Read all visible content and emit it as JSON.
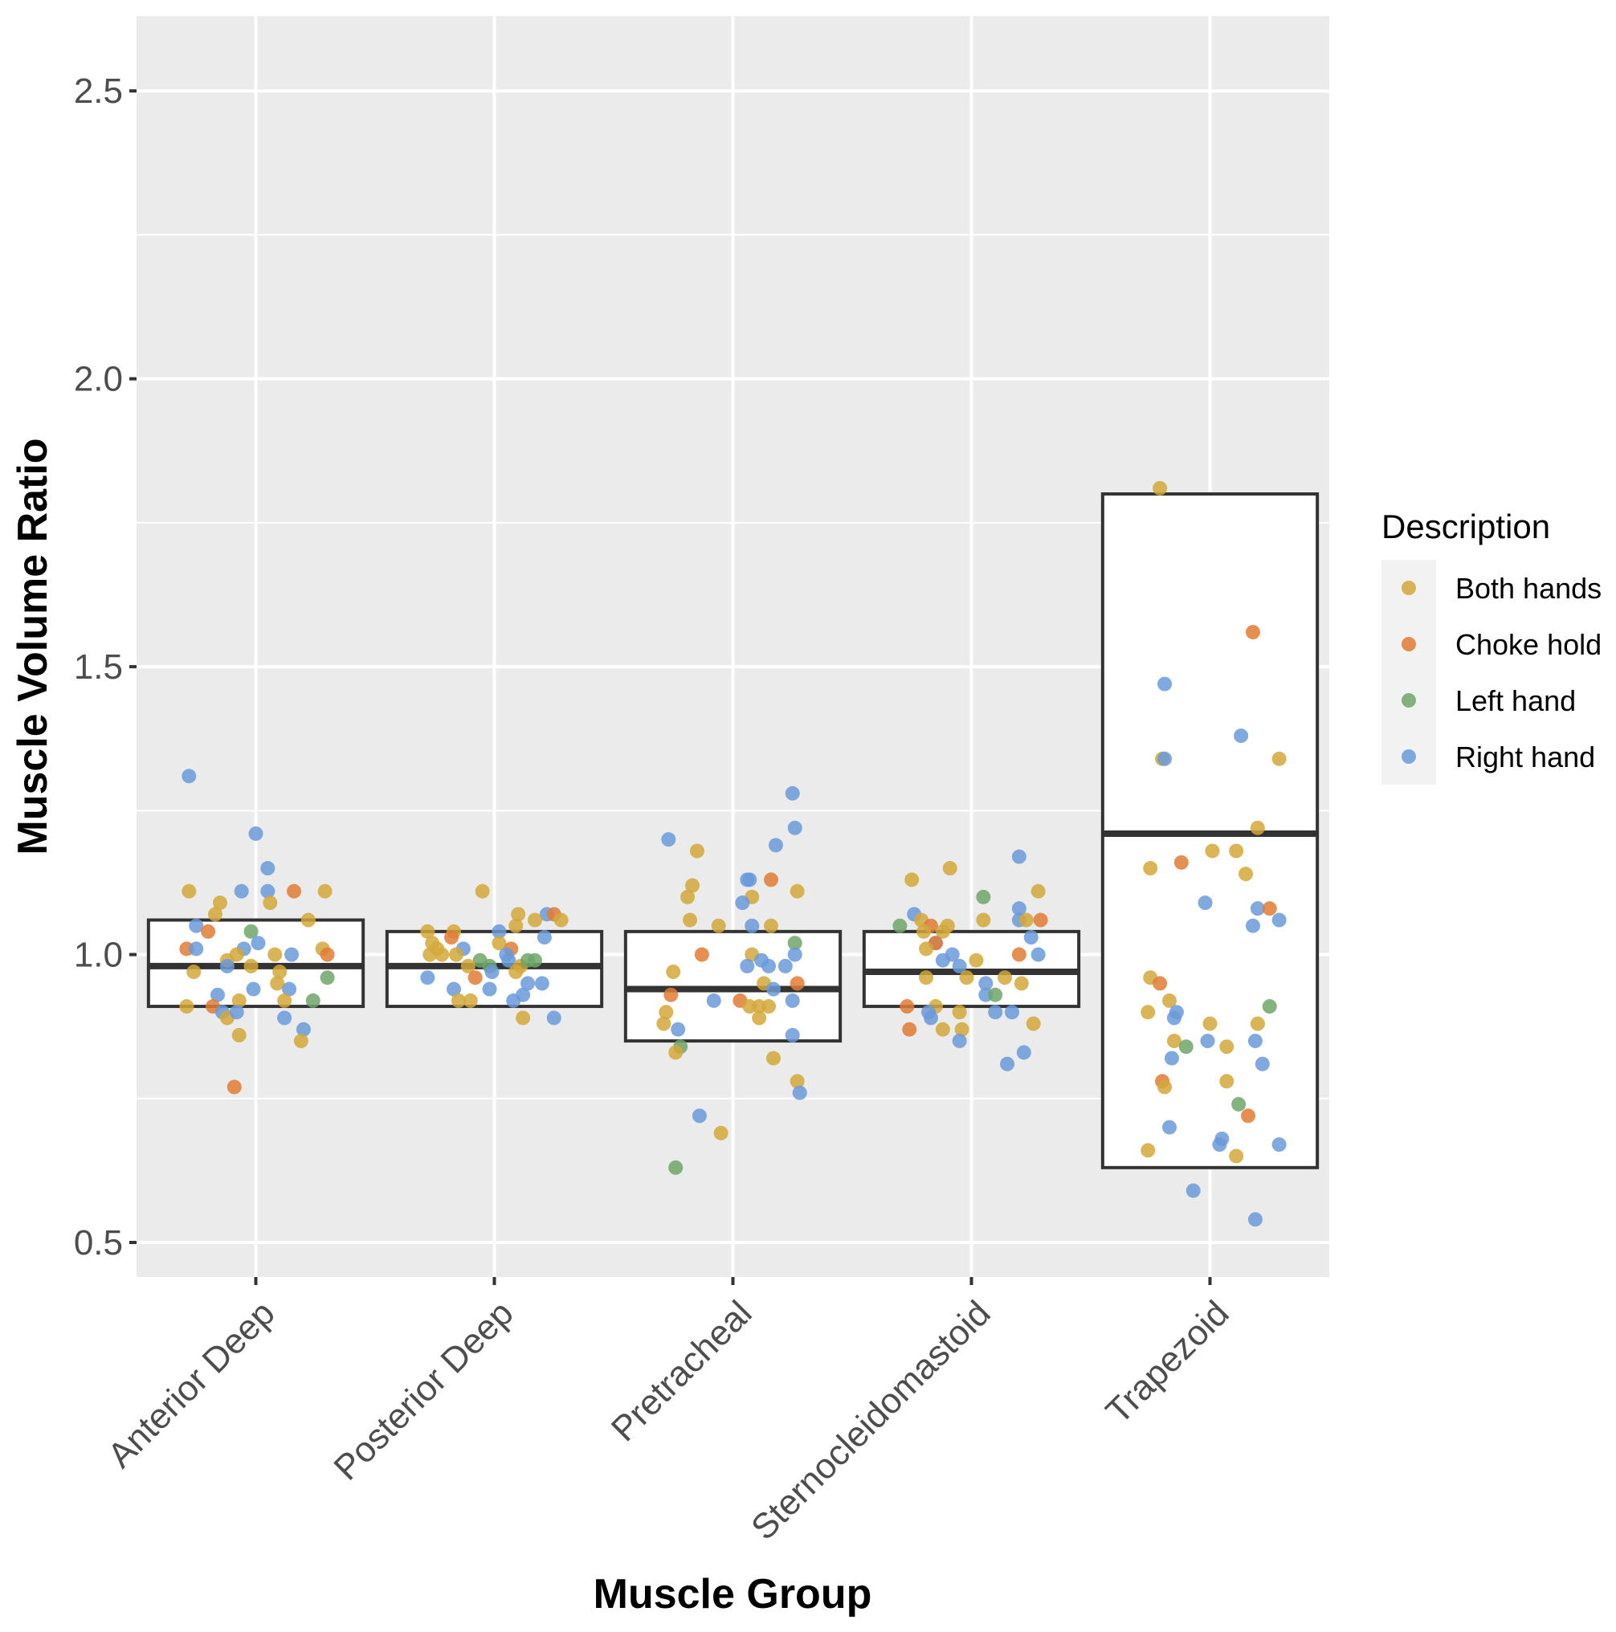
{
  "chart_data": {
    "type": "box-with-jitter",
    "title": "",
    "xlabel": "Muscle Group",
    "ylabel": "Muscle Volume Ratio",
    "ylim": [
      0.44,
      2.63
    ],
    "yticks": [
      "0.5",
      "1.0",
      "1.5",
      "2.0",
      "2.5"
    ],
    "ytick_values": [
      0.5,
      1.0,
      1.5,
      2.0,
      2.5
    ],
    "grid": true,
    "legend": {
      "title": "Description",
      "placement": "right",
      "entries": [
        {
          "label": "Both hands",
          "color": "#D4A83A"
        },
        {
          "label": "Choke hold",
          "color": "#E07B35"
        },
        {
          "label": "Left hand",
          "color": "#6FA66A"
        },
        {
          "label": "Right hand",
          "color": "#6A9AD9"
        }
      ]
    },
    "categories": [
      "Anterior Deep",
      "Posterior Deep",
      "Pretracheal",
      "Sternocleidomastoid",
      "Trapezoid"
    ],
    "boxes": [
      {
        "q1": 0.91,
        "median": 0.98,
        "q3": 1.06
      },
      {
        "q1": 0.91,
        "median": 0.98,
        "q3": 1.04
      },
      {
        "q1": 0.85,
        "median": 0.94,
        "q3": 1.04
      },
      {
        "q1": 0.91,
        "median": 0.97,
        "q3": 1.04
      },
      {
        "q1": 0.63,
        "median": 1.21,
        "q3": 1.8
      }
    ],
    "points": [
      [
        [
          -0.28,
          1.31,
          3
        ],
        [
          0.0,
          1.21,
          3
        ],
        [
          0.05,
          1.15,
          3
        ],
        [
          -0.06,
          1.11,
          3
        ],
        [
          0.05,
          1.11,
          3
        ],
        [
          -0.28,
          1.11,
          0
        ],
        [
          0.16,
          1.11,
          1
        ],
        [
          0.29,
          1.11,
          0
        ],
        [
          -0.15,
          1.09,
          0
        ],
        [
          0.06,
          1.09,
          0
        ],
        [
          -0.17,
          1.07,
          0
        ],
        [
          0.22,
          1.06,
          0
        ],
        [
          -0.25,
          1.05,
          3
        ],
        [
          -0.2,
          1.04,
          1
        ],
        [
          -0.02,
          1.04,
          2
        ],
        [
          0.01,
          1.02,
          3
        ],
        [
          -0.29,
          1.01,
          1
        ],
        [
          -0.25,
          1.01,
          3
        ],
        [
          -0.05,
          1.01,
          3
        ],
        [
          0.15,
          1.0,
          3
        ],
        [
          0.28,
          1.01,
          0
        ],
        [
          0.3,
          1.0,
          1
        ],
        [
          -0.08,
          1.0,
          0
        ],
        [
          0.08,
          1.0,
          0
        ],
        [
          -0.12,
          0.99,
          0
        ],
        [
          -0.02,
          0.98,
          0
        ],
        [
          -0.12,
          0.98,
          3
        ],
        [
          0.1,
          0.97,
          0
        ],
        [
          -0.26,
          0.97,
          0
        ],
        [
          0.3,
          0.96,
          2
        ],
        [
          0.09,
          0.95,
          0
        ],
        [
          -0.01,
          0.94,
          3
        ],
        [
          0.14,
          0.94,
          3
        ],
        [
          0.12,
          0.92,
          0
        ],
        [
          -0.16,
          0.93,
          3
        ],
        [
          -0.07,
          0.92,
          0
        ],
        [
          0.24,
          0.92,
          2
        ],
        [
          -0.29,
          0.91,
          0
        ],
        [
          -0.18,
          0.91,
          1
        ],
        [
          -0.14,
          0.9,
          3
        ],
        [
          -0.12,
          0.89,
          0
        ],
        [
          -0.08,
          0.9,
          3
        ],
        [
          0.12,
          0.89,
          3
        ],
        [
          0.2,
          0.87,
          3
        ],
        [
          -0.07,
          0.86,
          0
        ],
        [
          0.19,
          0.85,
          0
        ],
        [
          -0.09,
          0.77,
          1
        ]
      ],
      [
        [
          -0.05,
          1.11,
          0
        ],
        [
          0.1,
          1.07,
          0
        ],
        [
          0.22,
          1.07,
          3
        ],
        [
          0.25,
          1.07,
          1
        ],
        [
          0.28,
          1.06,
          0
        ],
        [
          0.17,
          1.06,
          0
        ],
        [
          0.02,
          1.04,
          3
        ],
        [
          -0.28,
          1.04,
          0
        ],
        [
          -0.17,
          1.04,
          0
        ],
        [
          -0.18,
          1.03,
          1
        ],
        [
          0.21,
          1.03,
          3
        ],
        [
          0.09,
          1.05,
          0
        ],
        [
          -0.26,
          1.02,
          0
        ],
        [
          0.02,
          1.02,
          0
        ],
        [
          -0.24,
          1.01,
          0
        ],
        [
          -0.13,
          1.01,
          3
        ],
        [
          0.07,
          1.01,
          1
        ],
        [
          -0.27,
          1.0,
          0
        ],
        [
          -0.22,
          1.0,
          0
        ],
        [
          -0.16,
          1.0,
          0
        ],
        [
          0.05,
          1.0,
          3
        ],
        [
          -0.06,
          0.99,
          2
        ],
        [
          0.06,
          0.99,
          3
        ],
        [
          -0.11,
          0.98,
          0
        ],
        [
          -0.02,
          0.98,
          2
        ],
        [
          0.11,
          0.98,
          0
        ],
        [
          0.14,
          0.99,
          2
        ],
        [
          0.17,
          0.99,
          2
        ],
        [
          -0.01,
          0.97,
          3
        ],
        [
          0.09,
          0.97,
          0
        ],
        [
          -0.28,
          0.96,
          3
        ],
        [
          -0.08,
          0.96,
          1
        ],
        [
          0.14,
          0.95,
          3
        ],
        [
          0.2,
          0.95,
          3
        ],
        [
          -0.17,
          0.94,
          3
        ],
        [
          -0.02,
          0.94,
          3
        ],
        [
          0.12,
          0.93,
          3
        ],
        [
          -0.1,
          0.92,
          0
        ],
        [
          -0.15,
          0.92,
          0
        ],
        [
          0.08,
          0.92,
          3
        ],
        [
          0.12,
          0.89,
          0
        ],
        [
          0.25,
          0.89,
          3
        ]
      ],
      [
        [
          -0.27,
          1.2,
          3
        ],
        [
          -0.15,
          1.18,
          0
        ],
        [
          0.25,
          1.28,
          3
        ],
        [
          0.26,
          1.22,
          3
        ],
        [
          0.18,
          1.19,
          3
        ],
        [
          0.16,
          1.13,
          1
        ],
        [
          0.06,
          1.13,
          3
        ],
        [
          0.07,
          1.13,
          3
        ],
        [
          -0.17,
          1.12,
          0
        ],
        [
          0.27,
          1.11,
          0
        ],
        [
          -0.19,
          1.1,
          0
        ],
        [
          0.08,
          1.1,
          0
        ],
        [
          0.04,
          1.09,
          3
        ],
        [
          -0.18,
          1.06,
          0
        ],
        [
          -0.06,
          1.05,
          0
        ],
        [
          0.08,
          1.05,
          3
        ],
        [
          0.16,
          1.05,
          0
        ],
        [
          0.26,
          1.02,
          2
        ],
        [
          0.08,
          1.0,
          0
        ],
        [
          -0.13,
          1.0,
          1
        ],
        [
          0.26,
          1.0,
          3
        ],
        [
          0.12,
          0.99,
          3
        ],
        [
          0.15,
          0.98,
          3
        ],
        [
          0.06,
          0.98,
          3
        ],
        [
          0.22,
          0.98,
          3
        ],
        [
          -0.25,
          0.97,
          0
        ],
        [
          0.13,
          0.95,
          0
        ],
        [
          0.27,
          0.95,
          1
        ],
        [
          0.17,
          0.94,
          3
        ],
        [
          -0.26,
          0.93,
          1
        ],
        [
          0.25,
          0.92,
          3
        ],
        [
          -0.08,
          0.92,
          3
        ],
        [
          0.03,
          0.92,
          1
        ],
        [
          0.07,
          0.91,
          0
        ],
        [
          0.15,
          0.91,
          0
        ],
        [
          0.11,
          0.91,
          0
        ],
        [
          -0.28,
          0.9,
          0
        ],
        [
          0.11,
          0.89,
          0
        ],
        [
          -0.29,
          0.88,
          0
        ],
        [
          -0.23,
          0.87,
          3
        ],
        [
          0.25,
          0.86,
          3
        ],
        [
          -0.22,
          0.84,
          2
        ],
        [
          -0.24,
          0.83,
          0
        ],
        [
          0.17,
          0.82,
          0
        ],
        [
          0.27,
          0.78,
          0
        ],
        [
          0.28,
          0.76,
          3
        ],
        [
          -0.14,
          0.72,
          3
        ],
        [
          -0.05,
          0.69,
          0
        ],
        [
          -0.24,
          0.63,
          2
        ]
      ],
      [
        [
          -0.25,
          1.13,
          0
        ],
        [
          -0.09,
          1.15,
          0
        ],
        [
          0.2,
          1.17,
          3
        ],
        [
          0.05,
          1.1,
          2
        ],
        [
          0.28,
          1.11,
          0
        ],
        [
          0.2,
          1.08,
          3
        ],
        [
          -0.24,
          1.07,
          3
        ],
        [
          -0.21,
          1.06,
          0
        ],
        [
          0.05,
          1.06,
          0
        ],
        [
          0.2,
          1.06,
          3
        ],
        [
          0.23,
          1.06,
          0
        ],
        [
          0.29,
          1.06,
          1
        ],
        [
          -0.3,
          1.05,
          2
        ],
        [
          -0.17,
          1.05,
          1
        ],
        [
          -0.1,
          1.05,
          0
        ],
        [
          -0.12,
          1.04,
          0
        ],
        [
          -0.2,
          1.04,
          0
        ],
        [
          0.25,
          1.03,
          3
        ],
        [
          -0.15,
          1.02,
          3
        ],
        [
          -0.15,
          1.02,
          1
        ],
        [
          -0.19,
          1.01,
          0
        ],
        [
          -0.08,
          1.0,
          3
        ],
        [
          0.2,
          1.0,
          1
        ],
        [
          0.28,
          1.0,
          3
        ],
        [
          -0.12,
          0.99,
          3
        ],
        [
          0.02,
          0.99,
          0
        ],
        [
          -0.05,
          0.98,
          3
        ],
        [
          -0.02,
          0.96,
          0
        ],
        [
          -0.19,
          0.96,
          0
        ],
        [
          0.14,
          0.96,
          0
        ],
        [
          0.06,
          0.95,
          3
        ],
        [
          0.21,
          0.95,
          0
        ],
        [
          0.06,
          0.93,
          3
        ],
        [
          0.1,
          0.93,
          2
        ],
        [
          -0.27,
          0.91,
          1
        ],
        [
          -0.15,
          0.91,
          0
        ],
        [
          -0.18,
          0.9,
          3
        ],
        [
          -0.05,
          0.9,
          0
        ],
        [
          0.17,
          0.9,
          3
        ],
        [
          0.1,
          0.9,
          3
        ],
        [
          -0.17,
          0.89,
          3
        ],
        [
          -0.12,
          0.87,
          0
        ],
        [
          -0.04,
          0.87,
          0
        ],
        [
          0.26,
          0.88,
          0
        ],
        [
          -0.26,
          0.87,
          1
        ],
        [
          -0.05,
          0.85,
          3
        ],
        [
          0.22,
          0.83,
          3
        ],
        [
          0.15,
          0.81,
          3
        ]
      ],
      [
        [
          -0.21,
          1.81,
          0
        ],
        [
          0.18,
          1.56,
          1
        ],
        [
          -0.19,
          1.47,
          3
        ],
        [
          0.13,
          1.38,
          3
        ],
        [
          -0.2,
          1.34,
          0
        ],
        [
          -0.19,
          1.34,
          3
        ],
        [
          0.29,
          1.34,
          0
        ],
        [
          0.2,
          1.22,
          0
        ],
        [
          0.01,
          1.18,
          0
        ],
        [
          0.11,
          1.18,
          0
        ],
        [
          0.15,
          1.14,
          0
        ],
        [
          -0.12,
          1.16,
          1
        ],
        [
          -0.25,
          1.15,
          0
        ],
        [
          -0.02,
          1.09,
          3
        ],
        [
          0.2,
          1.08,
          3
        ],
        [
          0.25,
          1.08,
          1
        ],
        [
          0.18,
          1.05,
          3
        ],
        [
          0.29,
          1.06,
          3
        ],
        [
          -0.25,
          0.96,
          0
        ],
        [
          -0.21,
          0.95,
          1
        ],
        [
          -0.17,
          0.92,
          0
        ],
        [
          -0.14,
          0.9,
          3
        ],
        [
          -0.26,
          0.9,
          0
        ],
        [
          -0.15,
          0.89,
          3
        ],
        [
          0.25,
          0.91,
          2
        ],
        [
          0.2,
          0.88,
          0
        ],
        [
          0.0,
          0.88,
          0
        ],
        [
          -0.15,
          0.85,
          0
        ],
        [
          -0.1,
          0.84,
          2
        ],
        [
          -0.01,
          0.85,
          3
        ],
        [
          0.07,
          0.84,
          0
        ],
        [
          0.19,
          0.85,
          3
        ],
        [
          -0.16,
          0.82,
          3
        ],
        [
          0.22,
          0.81,
          3
        ],
        [
          0.07,
          0.78,
          0
        ],
        [
          -0.2,
          0.78,
          1
        ],
        [
          -0.19,
          0.77,
          0
        ],
        [
          0.12,
          0.74,
          2
        ],
        [
          0.16,
          0.72,
          1
        ],
        [
          -0.17,
          0.7,
          3
        ],
        [
          0.05,
          0.68,
          3
        ],
        [
          0.04,
          0.67,
          3
        ],
        [
          0.29,
          0.67,
          3
        ],
        [
          -0.26,
          0.66,
          0
        ],
        [
          0.11,
          0.65,
          0
        ],
        [
          -0.07,
          0.59,
          3
        ],
        [
          0.19,
          0.54,
          3
        ]
      ]
    ]
  }
}
